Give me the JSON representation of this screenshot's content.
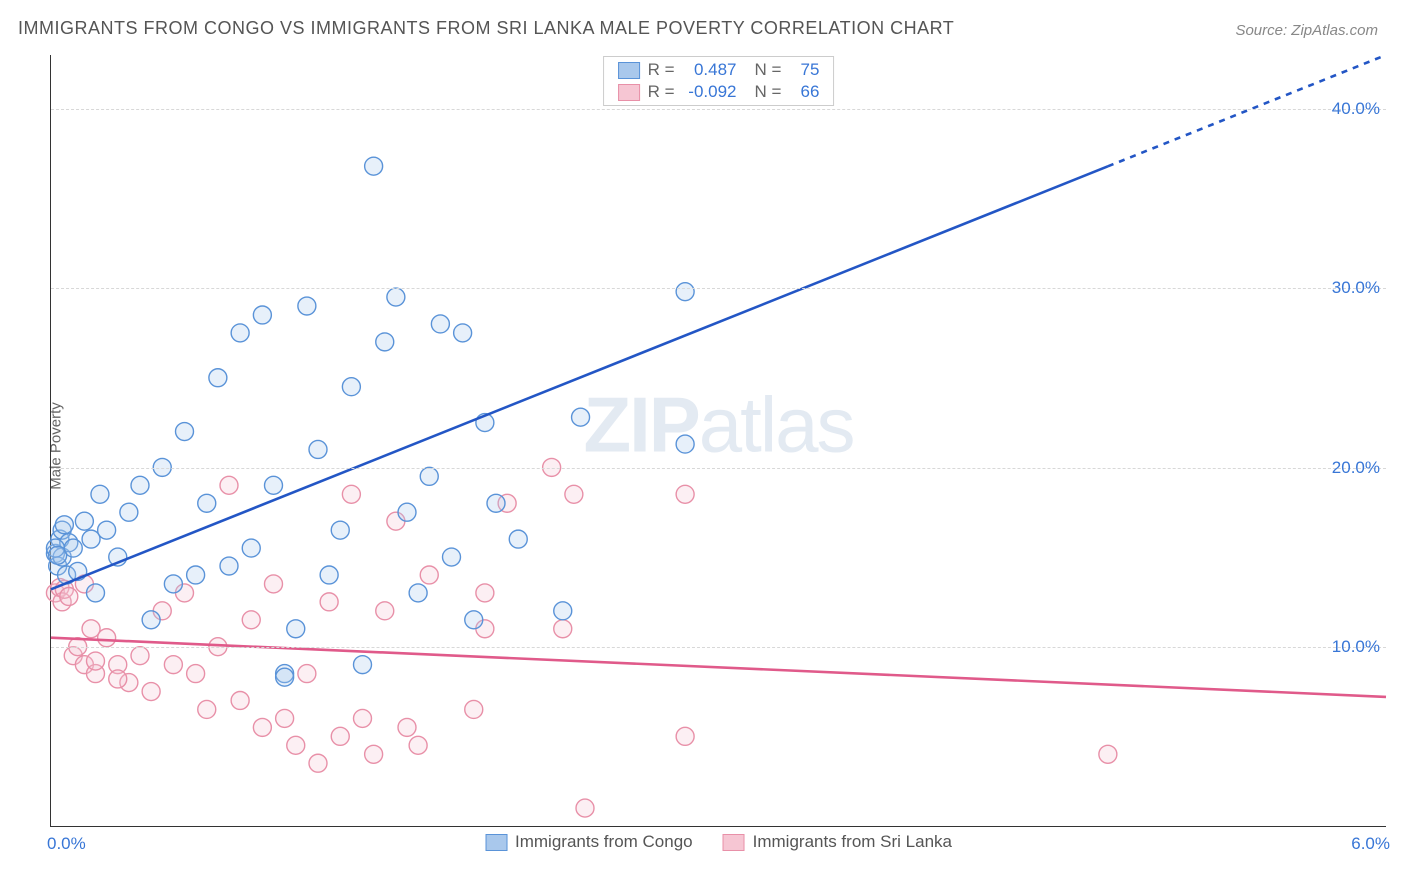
{
  "title": "IMMIGRANTS FROM CONGO VS IMMIGRANTS FROM SRI LANKA MALE POVERTY CORRELATION CHART",
  "source": "Source: ZipAtlas.com",
  "ylabel": "Male Poverty",
  "watermark_bold": "ZIP",
  "watermark_rest": "atlas",
  "chart": {
    "type": "scatter",
    "background_color": "#ffffff",
    "grid_color": "#d8d8d8",
    "axis_color": "#333333",
    "xlim": [
      0.0,
      6.0
    ],
    "ylim": [
      0.0,
      43.0
    ],
    "y_ticks": [
      10.0,
      20.0,
      30.0,
      40.0
    ],
    "y_tick_labels": [
      "10.0%",
      "20.0%",
      "30.0%",
      "40.0%"
    ],
    "x_tick_left": "0.0%",
    "x_tick_right": "6.0%",
    "tick_color": "#3876d6",
    "tick_fontsize": 17,
    "marker_radius": 9,
    "marker_stroke_width": 1.4,
    "marker_fill_opacity": 0.28,
    "line_width": 2.6,
    "dash_pattern": "6,6"
  },
  "series": [
    {
      "name": "Immigrants from Congo",
      "color_stroke": "#5a93d8",
      "color_fill": "#a9c8ec",
      "line_color": "#2356c5",
      "R": "0.487",
      "N": "75",
      "regression": {
        "x1": 0.0,
        "y1": 13.2,
        "x2": 6.0,
        "y2": 43.0,
        "solid_until_x": 4.75
      },
      "points": [
        [
          0.02,
          15.2
        ],
        [
          0.03,
          14.5
        ],
        [
          0.04,
          16.0
        ],
        [
          0.05,
          15.0
        ],
        [
          0.05,
          16.5
        ],
        [
          0.07,
          14.0
        ],
        [
          0.08,
          15.8
        ],
        [
          0.02,
          15.5
        ],
        [
          0.03,
          15.1
        ],
        [
          0.06,
          16.8
        ],
        [
          0.1,
          15.5
        ],
        [
          0.12,
          14.2
        ],
        [
          0.15,
          17.0
        ],
        [
          0.18,
          16.0
        ],
        [
          0.2,
          13.0
        ],
        [
          0.22,
          18.5
        ],
        [
          0.25,
          16.5
        ],
        [
          0.3,
          15.0
        ],
        [
          0.35,
          17.5
        ],
        [
          0.4,
          19.0
        ],
        [
          0.45,
          11.5
        ],
        [
          0.5,
          20.0
        ],
        [
          0.55,
          13.5
        ],
        [
          0.6,
          22.0
        ],
        [
          0.65,
          14.0
        ],
        [
          0.7,
          18.0
        ],
        [
          0.75,
          25.0
        ],
        [
          0.8,
          14.5
        ],
        [
          0.85,
          27.5
        ],
        [
          0.9,
          15.5
        ],
        [
          0.95,
          28.5
        ],
        [
          1.0,
          19.0
        ],
        [
          1.05,
          8.5
        ],
        [
          1.05,
          8.3
        ],
        [
          1.1,
          11.0
        ],
        [
          1.15,
          29.0
        ],
        [
          1.2,
          21.0
        ],
        [
          1.25,
          14.0
        ],
        [
          1.3,
          16.5
        ],
        [
          1.35,
          24.5
        ],
        [
          1.4,
          9.0
        ],
        [
          1.45,
          36.8
        ],
        [
          1.5,
          27.0
        ],
        [
          1.55,
          29.5
        ],
        [
          1.6,
          17.5
        ],
        [
          1.65,
          13.0
        ],
        [
          1.7,
          19.5
        ],
        [
          1.75,
          28.0
        ],
        [
          1.8,
          15.0
        ],
        [
          1.85,
          27.5
        ],
        [
          1.9,
          11.5
        ],
        [
          1.95,
          22.5
        ],
        [
          2.0,
          18.0
        ],
        [
          2.1,
          16.0
        ],
        [
          2.3,
          12.0
        ],
        [
          2.38,
          22.8
        ],
        [
          2.85,
          29.8
        ],
        [
          2.85,
          21.3
        ]
      ]
    },
    {
      "name": "Immigrants from Sri Lanka",
      "color_stroke": "#e890a8",
      "color_fill": "#f6c6d3",
      "line_color": "#e05a8a",
      "R": "-0.092",
      "N": "66",
      "regression": {
        "x1": 0.0,
        "y1": 10.5,
        "x2": 6.0,
        "y2": 7.2,
        "solid_until_x": 6.0
      },
      "points": [
        [
          0.02,
          13.0
        ],
        [
          0.04,
          13.3
        ],
        [
          0.05,
          12.5
        ],
        [
          0.06,
          13.2
        ],
        [
          0.08,
          12.8
        ],
        [
          0.1,
          9.5
        ],
        [
          0.12,
          10.0
        ],
        [
          0.15,
          9.0
        ],
        [
          0.18,
          11.0
        ],
        [
          0.2,
          8.5
        ],
        [
          0.25,
          10.5
        ],
        [
          0.3,
          9.0
        ],
        [
          0.15,
          13.5
        ],
        [
          0.35,
          8.0
        ],
        [
          0.4,
          9.5
        ],
        [
          0.45,
          7.5
        ],
        [
          0.5,
          12.0
        ],
        [
          0.55,
          9.0
        ],
        [
          0.6,
          13.0
        ],
        [
          0.2,
          9.2
        ],
        [
          0.3,
          8.2
        ],
        [
          0.65,
          8.5
        ],
        [
          0.7,
          6.5
        ],
        [
          0.75,
          10.0
        ],
        [
          0.8,
          19.0
        ],
        [
          0.85,
          7.0
        ],
        [
          0.9,
          11.5
        ],
        [
          0.95,
          5.5
        ],
        [
          1.0,
          13.5
        ],
        [
          1.05,
          6.0
        ],
        [
          1.1,
          4.5
        ],
        [
          1.15,
          8.5
        ],
        [
          1.2,
          3.5
        ],
        [
          1.25,
          12.5
        ],
        [
          1.3,
          5.0
        ],
        [
          1.35,
          18.5
        ],
        [
          1.4,
          6.0
        ],
        [
          1.45,
          4.0
        ],
        [
          1.5,
          12.0
        ],
        [
          1.55,
          17.0
        ],
        [
          1.6,
          5.5
        ],
        [
          1.65,
          4.5
        ],
        [
          1.7,
          14.0
        ],
        [
          1.9,
          6.5
        ],
        [
          1.95,
          13.0
        ],
        [
          1.95,
          11.0
        ],
        [
          2.05,
          18.0
        ],
        [
          2.25,
          20.0
        ],
        [
          2.3,
          11.0
        ],
        [
          2.35,
          18.5
        ],
        [
          2.4,
          1.0
        ],
        [
          2.85,
          5.0
        ],
        [
          2.85,
          18.5
        ],
        [
          4.75,
          4.0
        ]
      ]
    }
  ],
  "legend_stats_labels": {
    "R": "R =",
    "N": "N ="
  },
  "bottom_legend_labels": [
    "Immigrants from Congo",
    "Immigrants from Sri Lanka"
  ]
}
